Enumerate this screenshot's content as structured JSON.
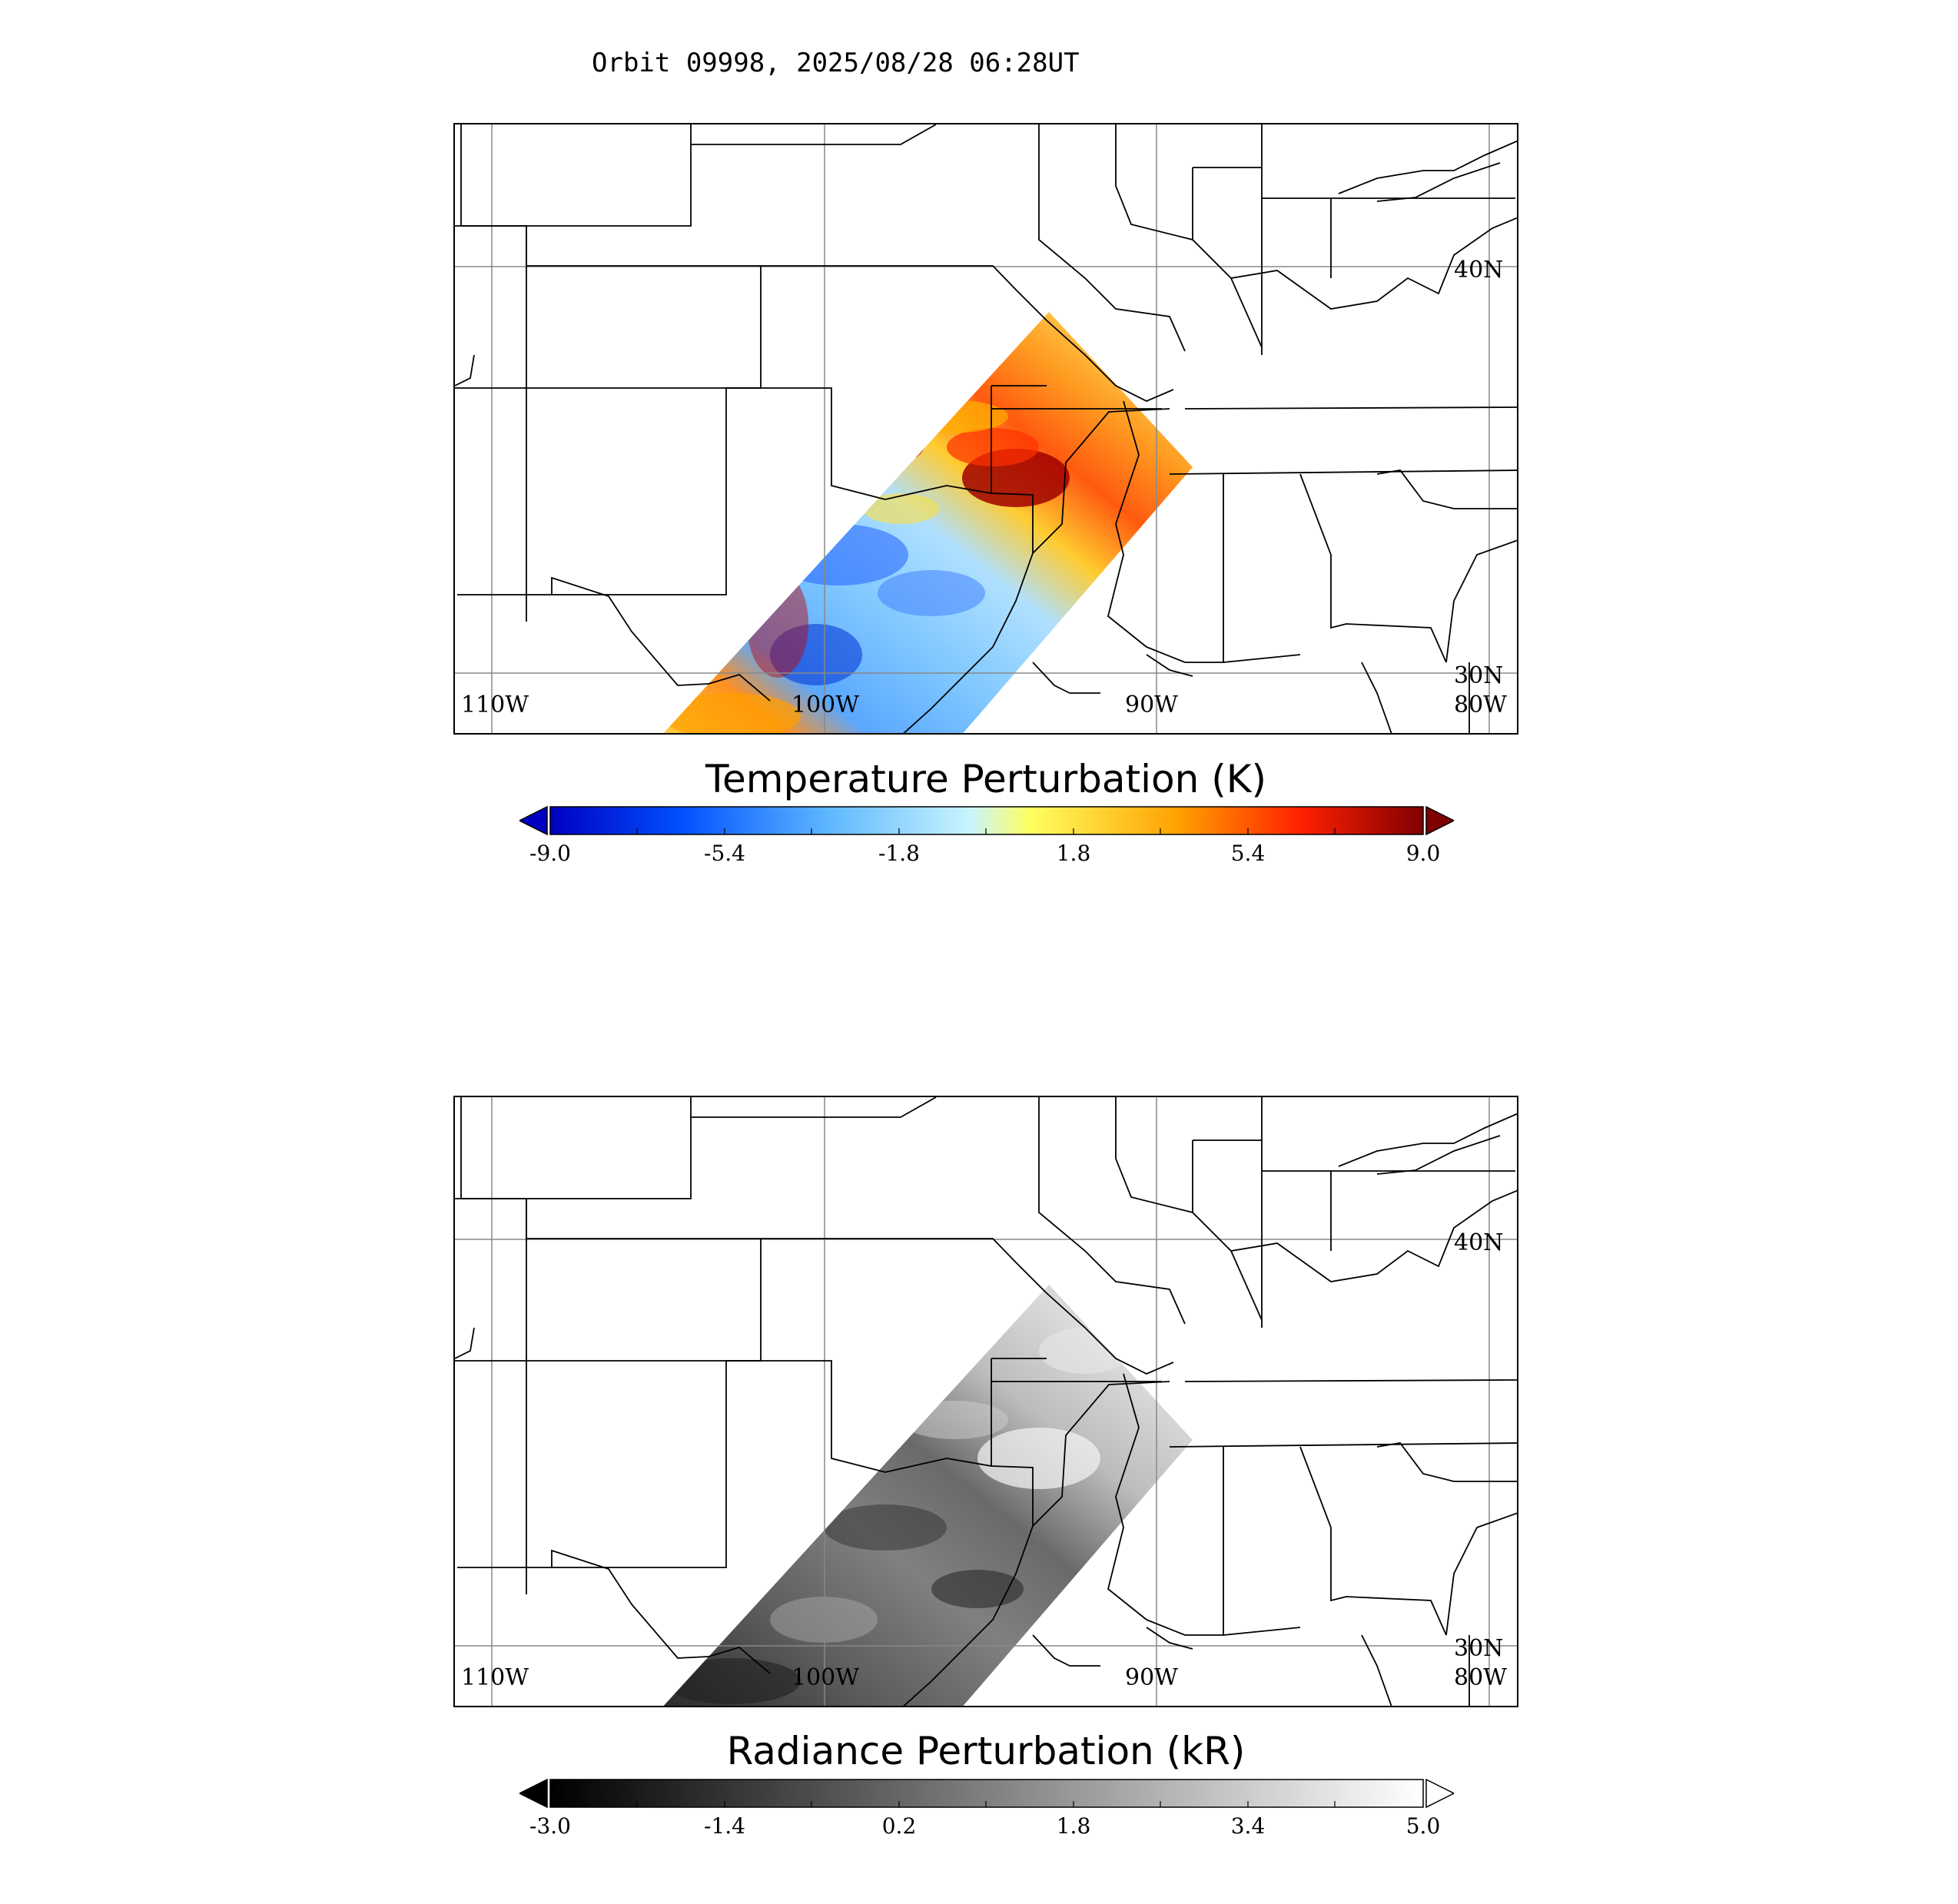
{
  "title": "Orbit 09998, 2025/08/28 06:28UT",
  "panels": [
    {
      "id": "temperature",
      "colorbar_title": "Temperature Perturbation (K)",
      "colormap": "jet",
      "colors": [
        "#00007f",
        "#0033ff",
        "#3fa0ff",
        "#bff0ff",
        "#ffff55",
        "#ffa500",
        "#ff2200",
        "#7f0000"
      ],
      "range": [
        -9.0,
        9.0
      ],
      "ticks": [
        "-9.0",
        "-5.4",
        "-1.8",
        "1.8",
        "5.4",
        "9.0"
      ],
      "extend": "both"
    },
    {
      "id": "radiance",
      "colorbar_title": "Radiance Perturbation (kR)",
      "colormap": "gray",
      "colors": [
        "#000000",
        "#ffffff"
      ],
      "range": [
        -3.0,
        5.0
      ],
      "ticks": [
        "-3.0",
        "-1.4",
        "0.2",
        "1.8",
        "3.4",
        "5.0"
      ],
      "extend": "both"
    }
  ],
  "map": {
    "lon_labels": [
      "110W",
      "100W",
      "90W",
      "80W"
    ],
    "lat_labels": [
      "40N",
      "30N"
    ]
  }
}
